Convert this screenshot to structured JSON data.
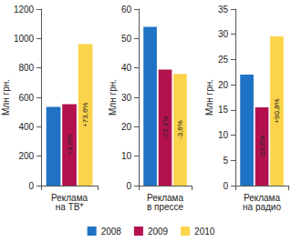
{
  "chart_data": [
    {
      "type": "bar",
      "categories": [
        "Реклама на ТВ*"
      ],
      "ylabel": "Млн грн.",
      "ylim": [
        0,
        1200
      ],
      "yticks": [
        0,
        200,
        400,
        600,
        800,
        1000,
        1200
      ],
      "grid": false,
      "legend": "bottom",
      "series": [
        {
          "name": "2008",
          "color": "#1f72c4",
          "values": [
            535
          ]
        },
        {
          "name": "2009",
          "color": "#b3124f",
          "values": [
            554
          ]
        },
        {
          "name": "2010",
          "color": "#fcd44b",
          "values": [
            962
          ]
        }
      ],
      "annotations": [
        {
          "series": "2009",
          "text": "+3,6%"
        },
        {
          "series": "2010",
          "text": "+73,6%"
        }
      ]
    },
    {
      "type": "bar",
      "categories": [
        "Реклама в прессе"
      ],
      "ylabel": "Млн грн.",
      "ylim": [
        0,
        60
      ],
      "yticks": [
        0,
        10,
        20,
        30,
        40,
        50,
        60
      ],
      "grid": false,
      "legend": "bottom",
      "series": [
        {
          "name": "2008",
          "color": "#1f72c4",
          "values": [
            54
          ]
        },
        {
          "name": "2009",
          "color": "#b3124f",
          "values": [
            39.4
          ]
        },
        {
          "name": "2010",
          "color": "#fcd44b",
          "values": [
            38
          ]
        }
      ],
      "annotations": [
        {
          "series": "2009",
          "text": "-27,1%"
        },
        {
          "series": "2010",
          "text": "-3,6%"
        }
      ]
    },
    {
      "type": "bar",
      "categories": [
        "Реклама на радио"
      ],
      "ylabel": "Млн грн.",
      "ylim": [
        0,
        35
      ],
      "yticks": [
        0,
        5,
        10,
        15,
        20,
        25,
        30,
        35
      ],
      "grid": false,
      "legend": "bottom",
      "series": [
        {
          "name": "2008",
          "color": "#1f72c4",
          "values": [
            22
          ]
        },
        {
          "name": "2009",
          "color": "#b3124f",
          "values": [
            15.5
          ]
        },
        {
          "name": "2010",
          "color": "#fcd44b",
          "values": [
            29.6
          ]
        }
      ],
      "annotations": [
        {
          "series": "2009",
          "text": "-29,5%"
        },
        {
          "series": "2010",
          "text": "+90,8%"
        }
      ]
    }
  ]
}
